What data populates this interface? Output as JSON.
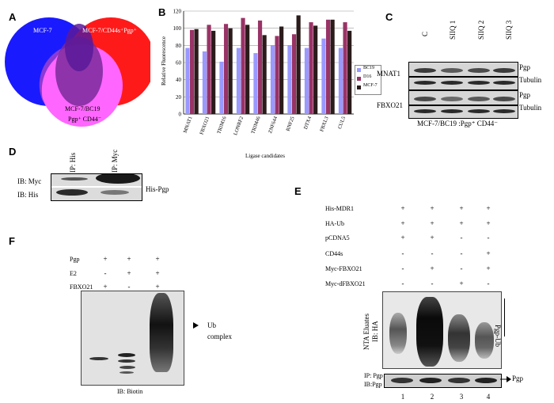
{
  "panels": {
    "a": {
      "letter": "A",
      "sets": [
        "MCF-7",
        "MCF-7/CD44s⁺Pgp⁺",
        "MCF-7/BC19",
        "Pgp⁺ CD44⁻"
      ],
      "colors": {
        "left": "#1a1aff",
        "right": "#ff1a1a",
        "bottom": "#ff66ff"
      }
    },
    "b": {
      "letter": "B",
      "legend": [
        "BC19",
        "D16",
        "MCF-7"
      ]
    },
    "c": {
      "letter": "C",
      "lanes": [
        "C",
        "SIIQ 1",
        "SIIQ 2",
        "SIIQ 3"
      ],
      "rows": [
        {
          "label": "MNAT1",
          "bands": [
            "Pgp",
            "Tubulin"
          ]
        },
        {
          "label": "FBXO21",
          "bands": [
            "Pgp",
            "Tubulin"
          ]
        }
      ],
      "caption": "MCF-7/BC19 :Pgp⁺ CD44⁻"
    },
    "d": {
      "letter": "D",
      "lanes": [
        "IP: His",
        "IP: Myc"
      ],
      "rows": [
        "IB: Myc",
        "IB: His"
      ],
      "side_label": "His-Pgp"
    },
    "e": {
      "letter": "E",
      "conditions": [
        {
          "label": "His-MDR1",
          "values": [
            "+",
            "+",
            "+",
            "+"
          ]
        },
        {
          "label": "HA-Ub",
          "values": [
            "+",
            "+",
            "+",
            "+"
          ]
        },
        {
          "label": "pCDNA5",
          "values": [
            "+",
            "+",
            "-",
            "-"
          ]
        },
        {
          "label": "CD44s",
          "values": [
            "-",
            "-",
            "-",
            "+"
          ]
        },
        {
          "label": "Myc-FBXO21",
          "values": [
            "-",
            "+",
            "-",
            "+"
          ]
        },
        {
          "label": "Myc-dFBXO21",
          "values": [
            "-",
            "-",
            "+",
            "-"
          ]
        }
      ],
      "blot_label_1": "NTA Eluates",
      "blot_label_2": "IB: HA",
      "side_label": "Pgp-Ub",
      "ip_label_1": "IP: Pgp",
      "ip_label_2": "IB:Pgp",
      "ip_side_label": "Pgp",
      "lane_numbers": [
        "1",
        "2",
        "3",
        "4"
      ]
    },
    "f": {
      "letter": "F",
      "conditions": [
        {
          "label": "Pgp",
          "values": [
            "+",
            "+",
            "+"
          ]
        },
        {
          "label": "E2",
          "values": [
            "-",
            "+",
            "+"
          ]
        },
        {
          "label": "FBXO21",
          "values": [
            "+",
            "-",
            "+"
          ]
        }
      ],
      "side_label_1": "Ub",
      "side_label_2": "complex",
      "caption": "IB: Biotin"
    }
  },
  "chart_data": {
    "type": "bar",
    "ylabel": "Relative Fluorescence",
    "xlabel": "Ligase candidates",
    "ylim": [
      0,
      120
    ],
    "yticks": [
      0,
      20,
      40,
      60,
      80,
      100,
      120
    ],
    "categories": [
      "MNAT1",
      "FBXO21",
      "TRIM16",
      "LONRF2",
      "TRIM46",
      "ZNF644",
      "RNF25",
      "DTX4",
      "FBXL3",
      "CUL5"
    ],
    "series": [
      {
        "name": "BC19",
        "color": "#9999ff",
        "values": [
          77,
          73,
          61,
          77,
          71,
          80,
          80,
          77,
          88,
          77
        ]
      },
      {
        "name": "D16",
        "color": "#993366",
        "values": [
          98,
          104,
          105,
          112,
          109,
          91,
          93,
          107,
          110,
          107
        ]
      },
      {
        "name": "MCF-7",
        "color": "#2b1b1b",
        "values": [
          99,
          97,
          100,
          104,
          92,
          102,
          115,
          103,
          110,
          97
        ]
      }
    ],
    "legend_position": "right"
  }
}
